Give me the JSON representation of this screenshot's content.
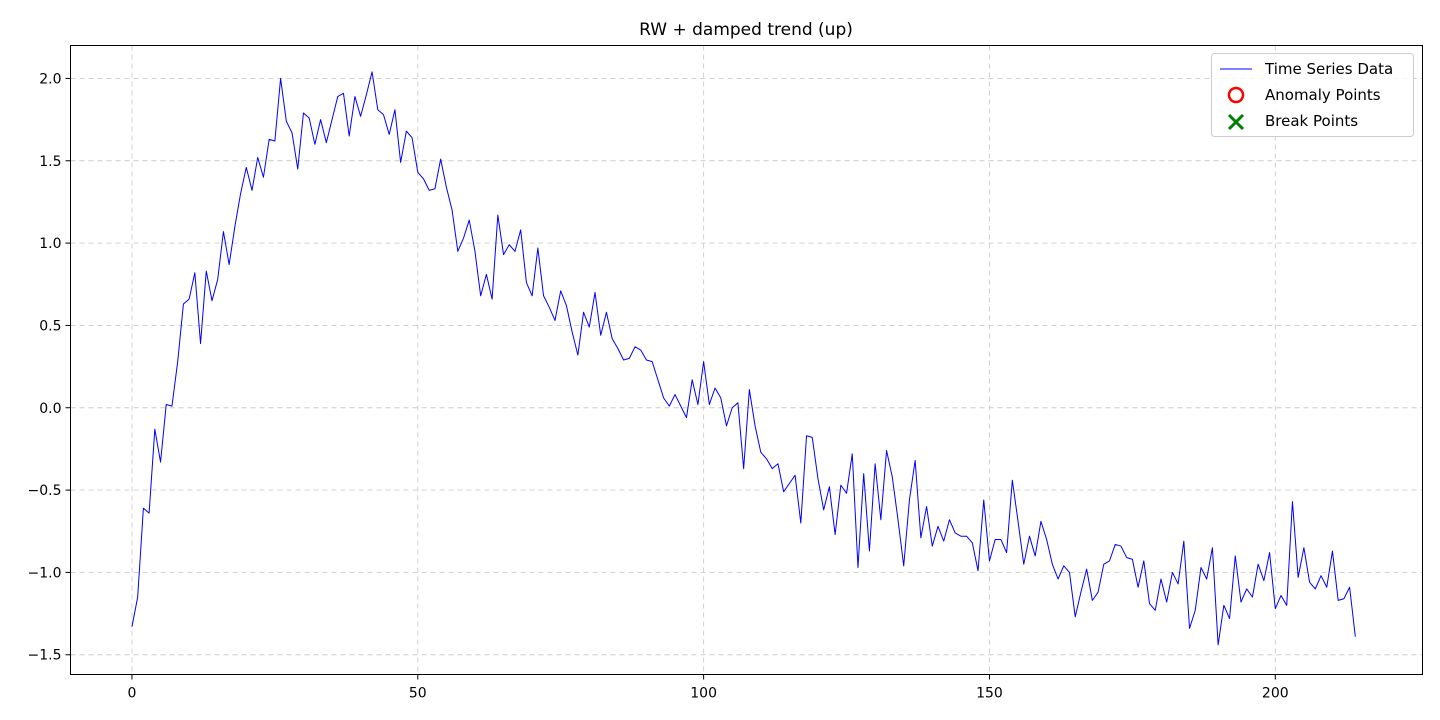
{
  "chart_data": {
    "type": "line",
    "title": "RW + damped trend (up)",
    "xlabel": "",
    "ylabel": "",
    "xlim": [
      -10.75,
      225.75
    ],
    "ylim": [
      -1.62,
      2.2
    ],
    "xticks": [
      0,
      50,
      100,
      150,
      200
    ],
    "yticks": [
      -1.5,
      -1.0,
      -0.5,
      0.0,
      0.5,
      1.0,
      1.5,
      2.0
    ],
    "ytick_labels": [
      "−1.5",
      "−1.0",
      "−0.5",
      "0.0",
      "0.5",
      "1.0",
      "1.5",
      "2.0"
    ],
    "grid": true,
    "legend_position": "top-right",
    "colors": {
      "line": "#0000ff",
      "anomaly": "#ff0000",
      "break": "#008000",
      "grid": "#cccccc"
    },
    "legend": [
      {
        "label": "Time Series Data",
        "marker": "line"
      },
      {
        "label": "Anomaly Points",
        "marker": "circle"
      },
      {
        "label": "Break Points",
        "marker": "x"
      }
    ],
    "series": [
      {
        "name": "Time Series Data",
        "values": [
          -1.33,
          -1.15,
          -0.61,
          -0.64,
          -0.13,
          -0.33,
          0.02,
          0.01,
          0.28,
          0.63,
          0.66,
          0.82,
          0.39,
          0.83,
          0.65,
          0.78,
          1.07,
          0.87,
          1.1,
          1.3,
          1.46,
          1.32,
          1.52,
          1.4,
          1.63,
          1.62,
          2.0,
          1.74,
          1.67,
          1.45,
          1.79,
          1.76,
          1.6,
          1.75,
          1.61,
          1.75,
          1.89,
          1.91,
          1.65,
          1.89,
          1.77,
          1.9,
          2.04,
          1.81,
          1.78,
          1.66,
          1.81,
          1.49,
          1.68,
          1.64,
          1.43,
          1.39,
          1.32,
          1.33,
          1.51,
          1.34,
          1.2,
          0.95,
          1.03,
          1.14,
          0.95,
          0.68,
          0.81,
          0.66,
          1.17,
          0.93,
          0.99,
          0.95,
          1.08,
          0.76,
          0.68,
          0.97,
          0.68,
          0.61,
          0.53,
          0.71,
          0.62,
          0.46,
          0.32,
          0.58,
          0.49,
          0.7,
          0.44,
          0.58,
          0.42,
          0.36,
          0.29,
          0.3,
          0.37,
          0.35,
          0.29,
          0.28,
          0.17,
          0.06,
          0.01,
          0.08,
          0.01,
          -0.06,
          0.17,
          0.02,
          0.28,
          0.02,
          0.12,
          0.06,
          -0.11,
          0.0,
          0.03,
          -0.37,
          0.11,
          -0.11,
          -0.27,
          -0.31,
          -0.37,
          -0.34,
          -0.51,
          -0.46,
          -0.41,
          -0.7,
          -0.17,
          -0.18,
          -0.43,
          -0.62,
          -0.48,
          -0.77,
          -0.47,
          -0.52,
          -0.28,
          -0.97,
          -0.4,
          -0.87,
          -0.34,
          -0.68,
          -0.26,
          -0.42,
          -0.68,
          -0.96,
          -0.56,
          -0.32,
          -0.79,
          -0.6,
          -0.84,
          -0.72,
          -0.81,
          -0.68,
          -0.76,
          -0.78,
          -0.78,
          -0.82,
          -0.99,
          -0.56,
          -0.93,
          -0.8,
          -0.8,
          -0.88,
          -0.44,
          -0.69,
          -0.95,
          -0.78,
          -0.9,
          -0.69,
          -0.8,
          -0.95,
          -1.04,
          -0.96,
          -1.0,
          -1.27,
          -1.12,
          -0.98,
          -1.17,
          -1.12,
          -0.95,
          -0.93,
          -0.83,
          -0.84,
          -0.91,
          -0.92,
          -1.09,
          -0.93,
          -1.19,
          -1.23,
          -1.04,
          -1.18,
          -1.0,
          -1.07,
          -0.81,
          -1.34,
          -1.23,
          -0.97,
          -1.04,
          -0.85,
          -1.44,
          -1.2,
          -1.28,
          -0.9,
          -1.18,
          -1.1,
          -1.15,
          -0.95,
          -1.05,
          -0.88,
          -1.22,
          -1.14,
          -1.2,
          -0.57,
          -1.03,
          -0.85,
          -1.06,
          -1.1,
          -1.02,
          -1.09,
          -0.87,
          -1.17,
          -1.16,
          -1.09,
          -1.39
        ]
      }
    ]
  }
}
